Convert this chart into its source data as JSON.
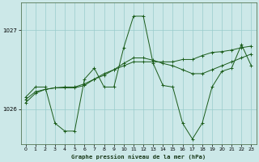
{
  "background_color": "#cce8e8",
  "grid_color": "#99cccc",
  "line_color": "#1a5c1a",
  "title": "Graphe pression niveau de la mer (hPa)",
  "xlim": [
    -0.5,
    23.5
  ],
  "ylim": [
    1025.55,
    1027.35
  ],
  "yticks": [
    1026,
    1027
  ],
  "xticks": [
    0,
    1,
    2,
    3,
    4,
    5,
    6,
    7,
    8,
    9,
    10,
    11,
    12,
    13,
    14,
    15,
    16,
    17,
    18,
    19,
    20,
    21,
    22,
    23
  ],
  "series1": [
    1026.15,
    1026.28,
    1026.28,
    1025.82,
    1025.72,
    1025.72,
    1026.38,
    1026.52,
    1026.28,
    1026.28,
    1026.78,
    1027.18,
    1027.18,
    1026.58,
    1026.3,
    1026.28,
    1025.82,
    1025.62,
    1025.82,
    1026.28,
    1026.48,
    1026.52,
    1026.82,
    1026.55
  ],
  "series2": [
    1026.12,
    1026.22,
    1026.25,
    1026.27,
    1026.28,
    1026.28,
    1026.32,
    1026.38,
    1026.43,
    1026.5,
    1026.55,
    1026.6,
    1026.6,
    1026.6,
    1026.6,
    1026.6,
    1026.63,
    1026.63,
    1026.68,
    1026.72,
    1026.73,
    1026.75,
    1026.78,
    1026.8
  ],
  "series3": [
    1026.08,
    1026.2,
    1026.25,
    1026.27,
    1026.27,
    1026.27,
    1026.3,
    1026.38,
    1026.45,
    1026.5,
    1026.58,
    1026.65,
    1026.65,
    1026.62,
    1026.58,
    1026.55,
    1026.5,
    1026.45,
    1026.45,
    1026.5,
    1026.55,
    1026.6,
    1026.65,
    1026.7
  ]
}
